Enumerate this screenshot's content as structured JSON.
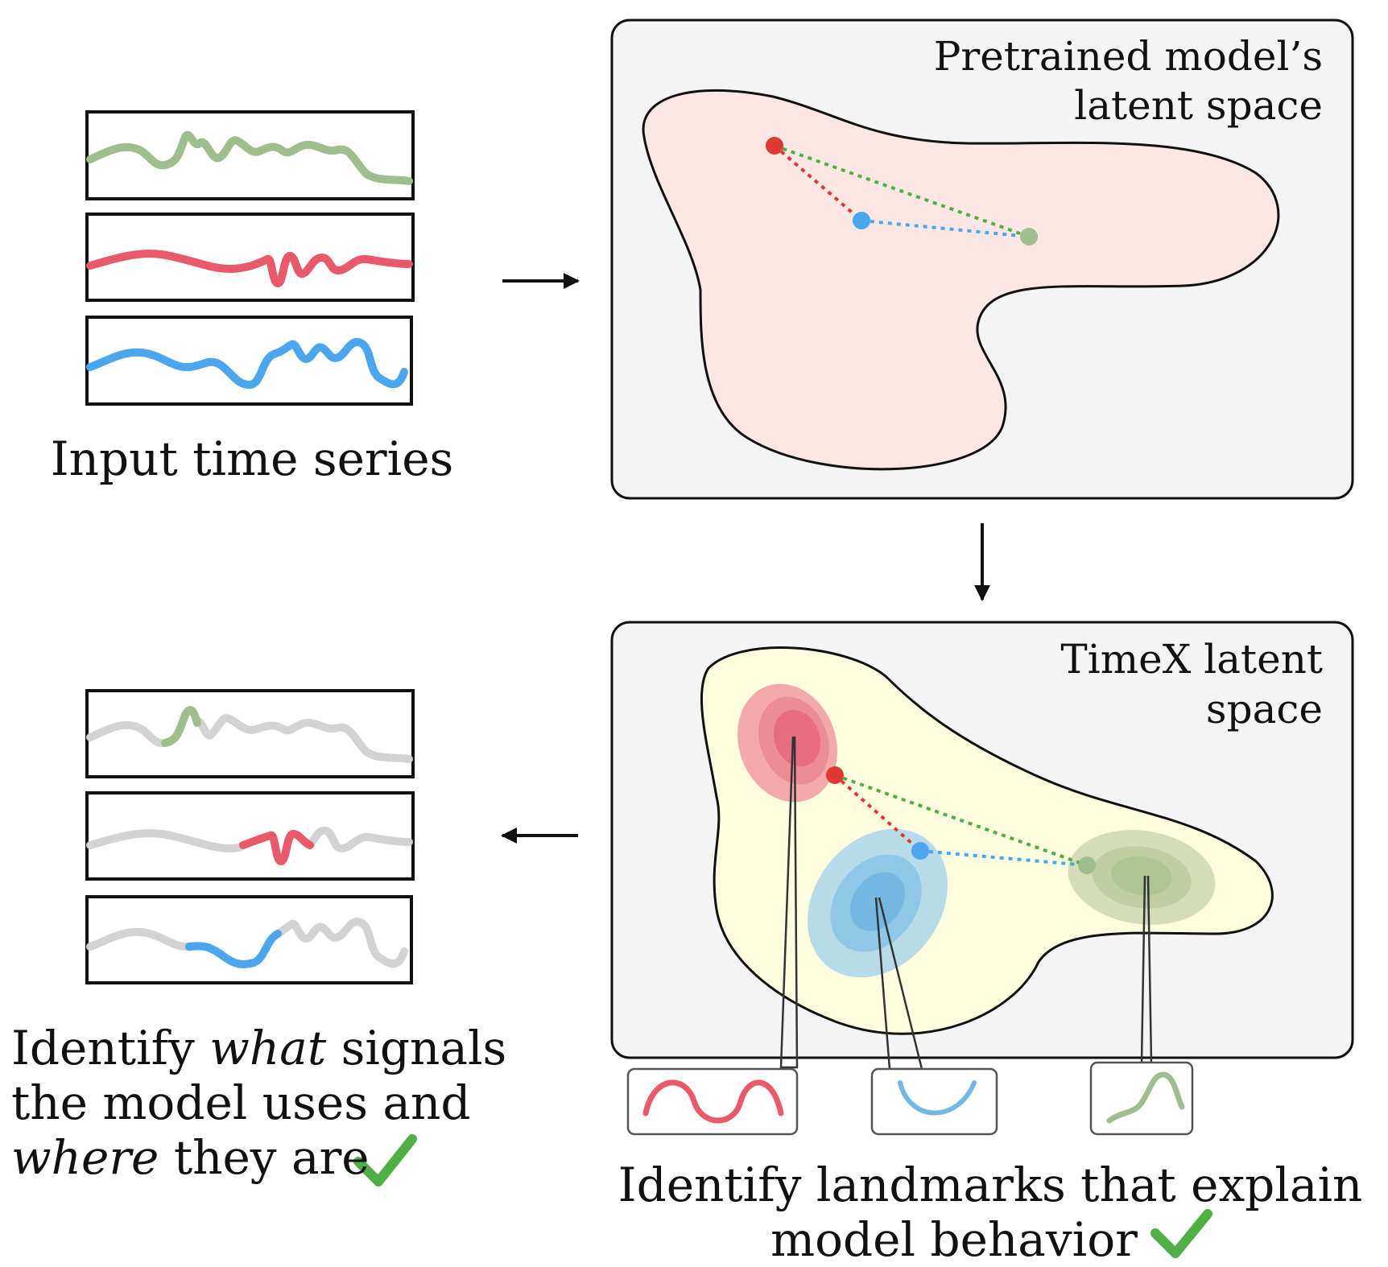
{
  "input_label": "Input time series",
  "pretrained_panel": {
    "title_line1": "Pretrained model’s",
    "title_line2": "latent space"
  },
  "timex_panel": {
    "title_line1": "TimeX latent",
    "title_line2": "space"
  },
  "left_caption": {
    "word_identify": "Identify",
    "word_what": "what",
    "rest_line1": "signals",
    "line2": "the model uses and",
    "word_where": "where",
    "rest_line3": "they are"
  },
  "bottom_caption": {
    "line1": "Identify landmarks that explain",
    "line2": "model behavior"
  },
  "icons": [
    "check-icon",
    "arrow-icon"
  ],
  "colors": {
    "green_series": "#9fbe8e",
    "red_series": "#e8596a",
    "blue_series": "#4ba6ee",
    "gray_series": "#d3d3d3",
    "panel_bg": "#f4f4f4",
    "pretrained_blob": "#fde7e5",
    "timex_blob": "#fefde0",
    "check": "#4fae44"
  }
}
